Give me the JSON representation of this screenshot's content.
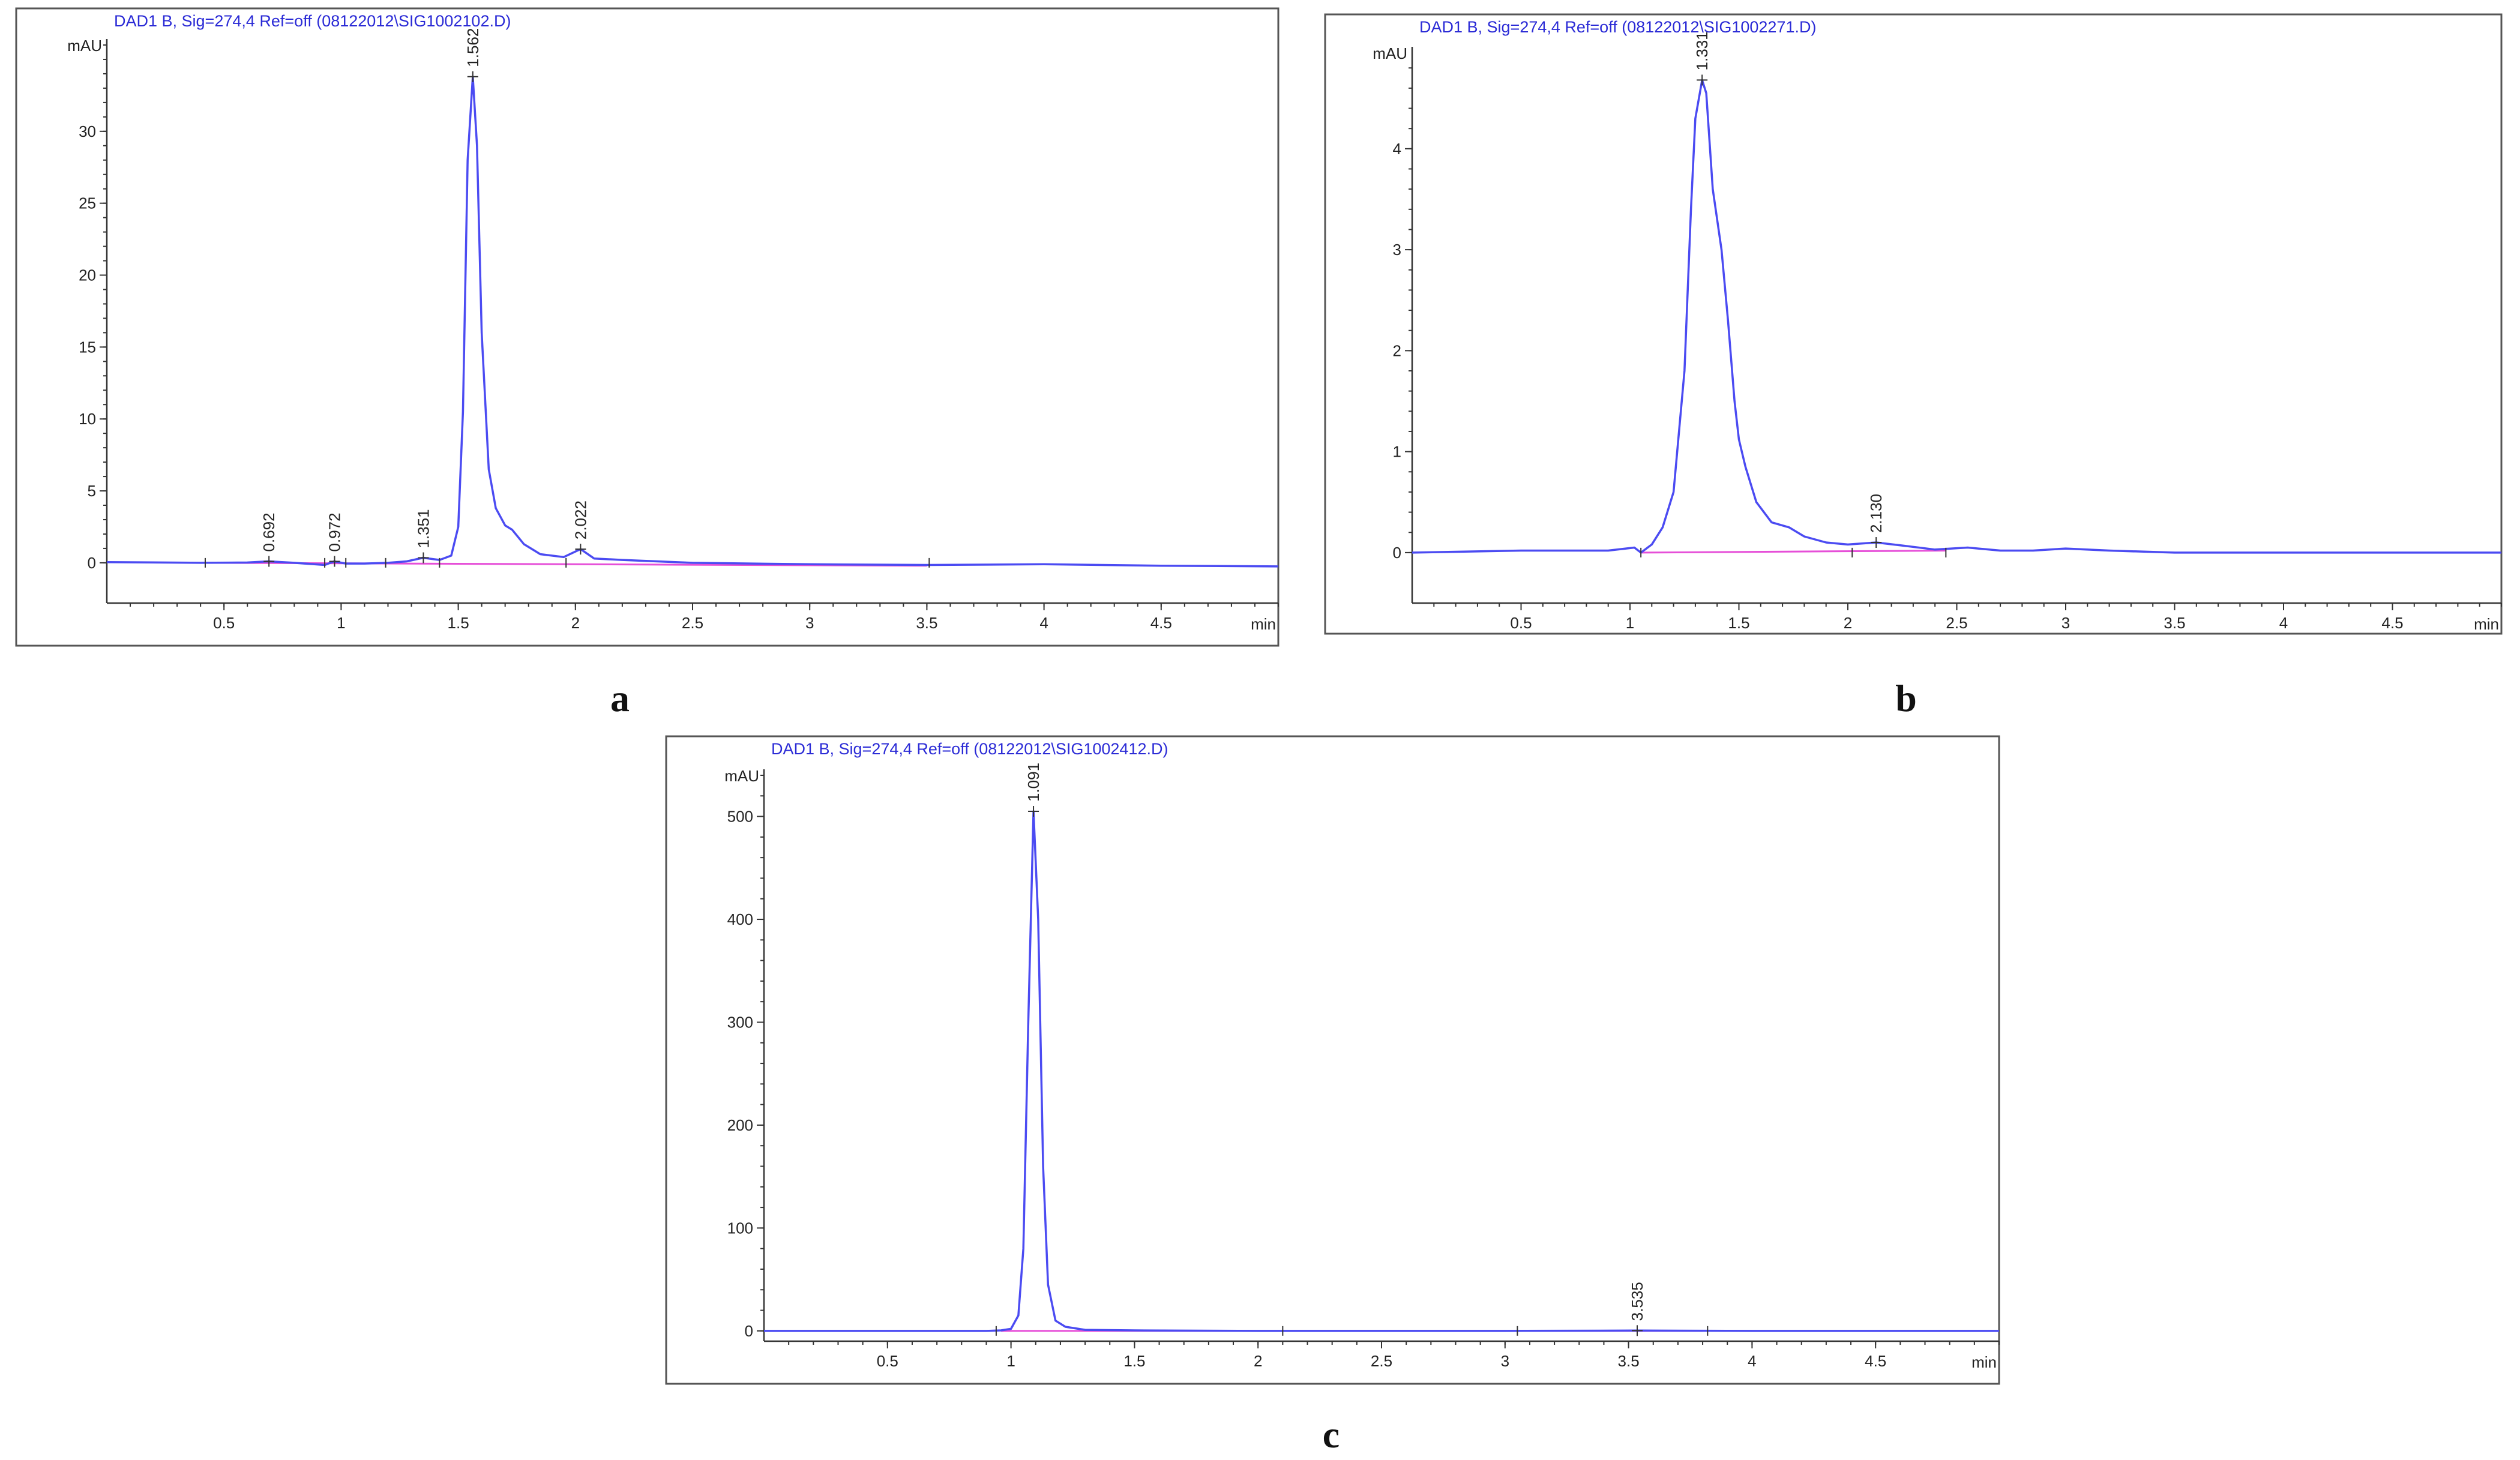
{
  "colors": {
    "trace": "#4b4bf2",
    "baseline": "#e64fd8",
    "title": "#2b2bd6"
  },
  "chart_data": [
    {
      "type": "line",
      "panel_label": "a",
      "title": "DAD1 B, Sig=274,4 Ref=off (08122012\\SIG1002102.D)",
      "ylabel": "mAU",
      "xlabel": "min",
      "xlim": [
        0,
        5
      ],
      "ylim": [
        -2.8,
        36
      ],
      "x_ticks": [
        0.5,
        1,
        1.5,
        2,
        2.5,
        3,
        3.5,
        4,
        4.5
      ],
      "x_tick_labels": [
        "0.5",
        "1",
        "1.5",
        "2",
        "2.5",
        "3",
        "3.5",
        "4",
        "4.5"
      ],
      "y_ticks": [
        0,
        5,
        10,
        15,
        20,
        25,
        30
      ],
      "y_tick_labels": [
        "0",
        "5",
        "10",
        "15",
        "20",
        "25",
        "30"
      ],
      "series": [
        {
          "x": [
            0,
            0.4,
            0.6,
            0.69,
            0.8,
            0.93,
            0.97,
            1.02,
            1.1,
            1.2,
            1.28,
            1.35,
            1.42,
            1.47,
            1.5,
            1.52,
            1.54,
            1.562,
            1.58,
            1.6,
            1.63,
            1.66,
            1.7,
            1.73,
            1.78,
            1.85,
            1.95,
            2.022,
            2.08,
            2.2,
            2.5,
            3,
            3.5,
            4,
            4.5,
            5
          ],
          "y": [
            0.05,
            0.0,
            0.02,
            0.1,
            0.0,
            -0.15,
            0.1,
            -0.05,
            -0.05,
            0.0,
            0.1,
            0.35,
            0.2,
            0.5,
            2.5,
            10.5,
            28,
            33.8,
            29,
            16,
            6.5,
            3.8,
            2.6,
            2.3,
            1.3,
            0.6,
            0.4,
            0.95,
            0.3,
            0.2,
            0.0,
            -0.1,
            -0.15,
            -0.1,
            -0.2,
            -0.25
          ]
        }
      ],
      "baseline": {
        "x": [
          0.45,
          3.5
        ],
        "y": [
          0.0,
          -0.2
        ]
      },
      "peaks": [
        {
          "rt": 0.692,
          "label": "0.692",
          "y": 0.1
        },
        {
          "rt": 0.972,
          "label": "0.972",
          "y": 0.1
        },
        {
          "rt": 1.351,
          "label": "1.351",
          "y": 0.35
        },
        {
          "rt": 1.562,
          "label": "1.562",
          "y": 33.8
        },
        {
          "rt": 2.022,
          "label": "2.022",
          "y": 0.95
        }
      ],
      "boundary_markers": [
        0.42,
        0.93,
        1.02,
        1.19,
        1.42,
        1.96,
        3.51
      ]
    },
    {
      "type": "line",
      "panel_label": "b",
      "title": "DAD1 B, Sig=274,4 Ref=off (08122012\\SIG1002271.D)",
      "ylabel": "mAU",
      "xlabel": "min",
      "xlim": [
        0,
        5
      ],
      "ylim": [
        -0.5,
        4.95
      ],
      "x_ticks": [
        0.5,
        1,
        1.5,
        2,
        2.5,
        3,
        3.5,
        4,
        4.5
      ],
      "x_tick_labels": [
        "0.5",
        "1",
        "1.5",
        "2",
        "2.5",
        "3",
        "3.5",
        "4",
        "4.5"
      ],
      "y_ticks": [
        0,
        1,
        2,
        3,
        4
      ],
      "y_tick_labels": [
        "0",
        "1",
        "2",
        "3",
        "4"
      ],
      "series": [
        {
          "x": [
            0,
            0.5,
            0.9,
            1.02,
            1.05,
            1.1,
            1.15,
            1.2,
            1.25,
            1.28,
            1.3,
            1.331,
            1.35,
            1.38,
            1.42,
            1.45,
            1.48,
            1.5,
            1.53,
            1.58,
            1.65,
            1.73,
            1.8,
            1.9,
            2.0,
            2.13,
            2.25,
            2.4,
            2.55,
            2.7,
            2.85,
            3.0,
            3.2,
            3.5,
            4.0,
            4.5,
            5.0
          ],
          "y": [
            0.0,
            0.02,
            0.02,
            0.05,
            0.0,
            0.08,
            0.25,
            0.6,
            1.8,
            3.4,
            4.3,
            4.68,
            4.55,
            3.6,
            3.0,
            2.3,
            1.5,
            1.12,
            0.85,
            0.5,
            0.3,
            0.25,
            0.16,
            0.1,
            0.08,
            0.1,
            0.07,
            0.03,
            0.05,
            0.02,
            0.02,
            0.04,
            0.02,
            0.0,
            0.0,
            0.0,
            0.0
          ]
        }
      ],
      "baseline": {
        "x": [
          1.05,
          2.45
        ],
        "y": [
          0.0,
          0.02
        ]
      },
      "peaks": [
        {
          "rt": 1.331,
          "label": "1.331",
          "y": 4.68
        },
        {
          "rt": 2.13,
          "label": "2.130",
          "y": 0.1
        }
      ],
      "boundary_markers": [
        1.05,
        2.02,
        2.45
      ]
    },
    {
      "type": "line",
      "panel_label": "c",
      "title": "DAD1 B, Sig=274,4 Ref=off (08122012\\SIG1002412.D)",
      "ylabel": "mAU",
      "xlabel": "min",
      "xlim": [
        0,
        5
      ],
      "ylim": [
        -10,
        540
      ],
      "x_ticks": [
        0.5,
        1,
        1.5,
        2,
        2.5,
        3,
        3.5,
        4,
        4.5
      ],
      "x_tick_labels": [
        "0.5",
        "1",
        "1.5",
        "2",
        "2.5",
        "3",
        "3.5",
        "4",
        "4.5"
      ],
      "y_ticks": [
        0,
        100,
        200,
        300,
        400,
        500
      ],
      "y_tick_labels": [
        "0",
        "100",
        "200",
        "300",
        "400",
        "500"
      ],
      "series": [
        {
          "x": [
            0,
            0.9,
            0.96,
            1.0,
            1.03,
            1.05,
            1.07,
            1.091,
            1.11,
            1.13,
            1.15,
            1.18,
            1.22,
            1.3,
            1.5,
            2.0,
            2.5,
            3.0,
            3.535,
            4.0,
            4.5,
            5.0
          ],
          "y": [
            0,
            0,
            0.5,
            2,
            15,
            80,
            300,
            505,
            400,
            160,
            45,
            10,
            4,
            1,
            0.5,
            0,
            0,
            0,
            0.3,
            0,
            0,
            0
          ]
        }
      ],
      "baseline": {
        "x": [
          0.96,
          3.8
        ],
        "y": [
          0,
          0
        ]
      },
      "peaks": [
        {
          "rt": 1.091,
          "label": "1.091",
          "y": 505
        },
        {
          "rt": 3.535,
          "label": "3.535",
          "y": 0.3
        }
      ],
      "boundary_markers": [
        0.94,
        2.1,
        3.05,
        3.82
      ]
    }
  ]
}
